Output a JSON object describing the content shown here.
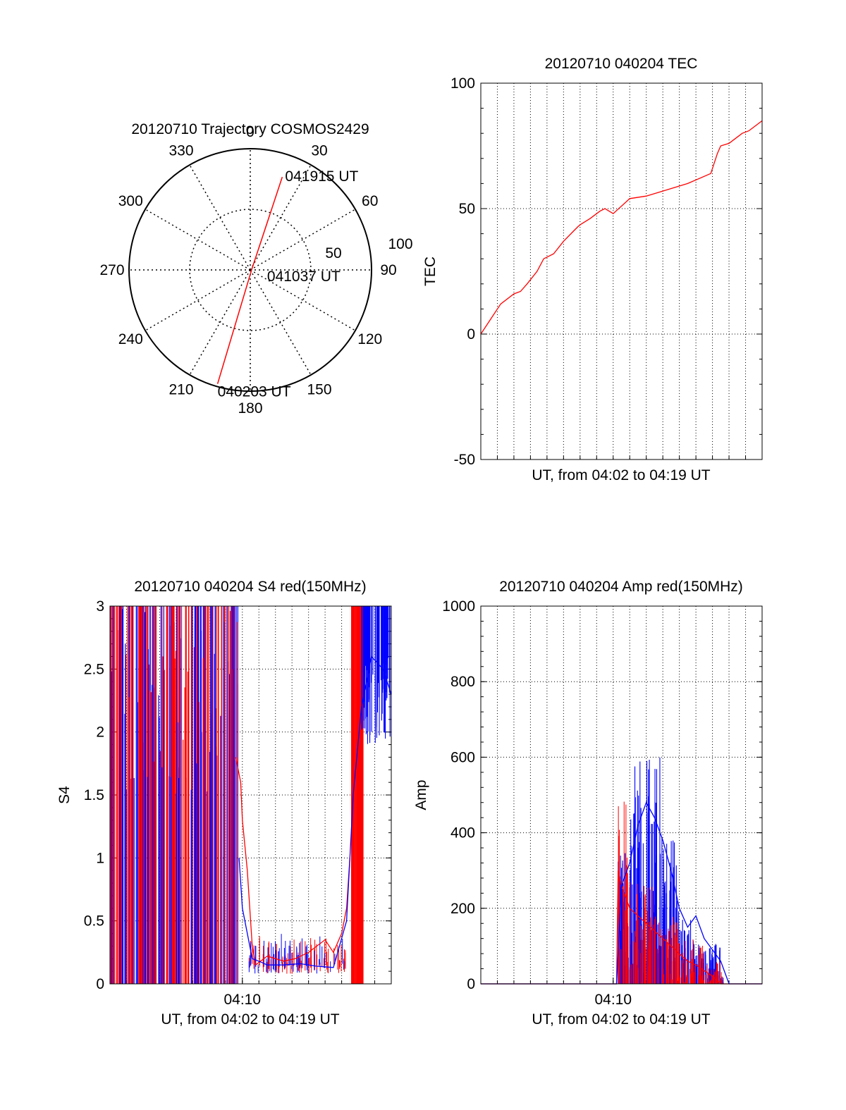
{
  "chart_data": [
    {
      "type": "polar-trajectory",
      "title": "20120710 Trajectory COSMOS2429",
      "azimuth_labels": [
        "0",
        "30",
        "60",
        "90",
        "120",
        "150",
        "180",
        "210",
        "240",
        "270",
        "300",
        "330"
      ],
      "radial_labels": [
        "50",
        "100"
      ],
      "grid": true,
      "series": [
        {
          "color": "#ff0000",
          "points": [
            {
              "az": 196,
              "el": 2,
              "label": "040203 UT"
            },
            {
              "az": 85,
              "el": 89,
              "label": "041037 UT"
            },
            {
              "az": 19,
              "el": 17,
              "label": "041915 UT"
            }
          ]
        }
      ]
    },
    {
      "type": "line",
      "title": "20120710 040204 TEC",
      "xlabel": "UT, from 04:02 to 04:19 UT",
      "ylabel": "TEC",
      "ylim": [
        -50,
        100
      ],
      "yticks": [
        "-50",
        "0",
        "50",
        "100"
      ],
      "xlim_minutes": [
        0,
        17
      ],
      "grid": true,
      "series": [
        {
          "color": "#ff0000",
          "x": [
            0,
            0.6,
            1.2,
            2.0,
            2.4,
            2.8,
            3.4,
            3.8,
            4.4,
            5.0,
            5.6,
            5.9,
            6.1,
            6.6,
            7.2,
            7.5,
            8.0,
            9.0,
            10.0,
            11.0,
            12.5,
            13.9,
            14.1,
            14.3,
            14.5,
            15.0,
            15.4,
            15.8,
            16.2,
            16.6,
            17.0
          ],
          "y": [
            0,
            6,
            12,
            16,
            17,
            20,
            25,
            30,
            32,
            37,
            41,
            43,
            44,
            46,
            49,
            50,
            48,
            54,
            55,
            57,
            60,
            64,
            68,
            72,
            75,
            76,
            78,
            80,
            81,
            83,
            85
          ]
        }
      ]
    },
    {
      "type": "line",
      "title": "20120710 040204 S4 red(150MHz)",
      "xlabel": "UT, from 04:02 to 04:19 UT",
      "ylabel": "S4",
      "ylim": [
        0,
        3
      ],
      "yticks": [
        "0",
        "0.5",
        "1",
        "1.5",
        "2",
        "2.5",
        "3"
      ],
      "xtick_labels": [
        "04:10"
      ],
      "xlim_minutes": [
        0,
        17
      ],
      "grid": true,
      "series": [
        {
          "color": "#ff0000",
          "x": [
            7.6,
            7.9,
            8.0,
            8.3,
            8.6,
            8.8,
            9.5,
            10.5,
            11.2,
            12.0,
            12.5,
            13.0,
            13.5,
            14.0,
            14.3,
            14.5
          ],
          "y": [
            1.8,
            1.6,
            1.3,
            0.9,
            0.3,
            0.15,
            0.22,
            0.18,
            0.2,
            0.25,
            0.3,
            0.35,
            0.25,
            0.4,
            0.6,
            1.0
          ]
        },
        {
          "color": "#0000ff",
          "x": [
            7.8,
            8.0,
            8.3,
            8.6,
            9.0,
            9.5,
            10.5,
            11.5,
            12.5,
            13.5,
            14.3,
            14.7,
            15.2,
            15.8,
            16.5,
            17.0
          ],
          "y": [
            1.0,
            0.6,
            0.4,
            0.2,
            0.18,
            0.15,
            0.15,
            0.16,
            0.14,
            0.13,
            0.5,
            1.5,
            2.2,
            2.6,
            2.5,
            2.3
          ]
        }
      ]
    },
    {
      "type": "line",
      "title": "20120710 040204 Amp red(150MHz)",
      "xlabel": "UT, from 04:02 to 04:19 UT",
      "ylabel": "Amp",
      "ylim": [
        0,
        1000
      ],
      "yticks": [
        "0",
        "200",
        "400",
        "600",
        "800",
        "1000"
      ],
      "xtick_labels": [
        "04:10"
      ],
      "xlim_minutes": [
        0,
        17
      ],
      "grid": true,
      "series": [
        {
          "color": "#ff0000",
          "x": [
            0,
            8.2,
            8.3,
            8.5,
            9.0,
            9.5,
            10.0,
            10.5,
            11.0,
            11.5,
            12.0,
            12.5,
            13.0,
            13.5,
            14.0,
            14.5,
            17.0
          ],
          "y": [
            0,
            0,
            300,
            260,
            200,
            180,
            160,
            140,
            120,
            100,
            80,
            60,
            50,
            35,
            20,
            0,
            0
          ]
        },
        {
          "color": "#0000ff",
          "x": [
            0,
            8.2,
            8.5,
            9.0,
            9.5,
            10.0,
            10.5,
            11.0,
            11.5,
            12.0,
            12.5,
            13.0,
            13.5,
            14.0,
            14.5,
            15.0,
            17.0
          ],
          "y": [
            0,
            0,
            260,
            320,
            420,
            480,
            440,
            380,
            300,
            200,
            150,
            180,
            120,
            90,
            60,
            0,
            0
          ]
        }
      ]
    }
  ]
}
